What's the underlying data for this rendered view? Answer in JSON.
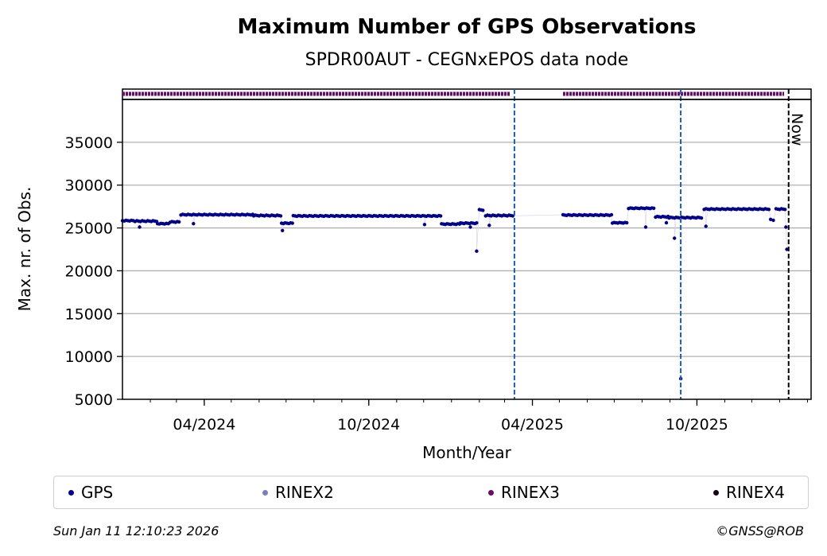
{
  "chart_data": {
    "type": "scatter",
    "title": "Maximum Number of GPS Observations",
    "subtitle": "SPDR00AUT - CEGNxEPOS data node",
    "xlabel": "Month/Year",
    "ylabel": "Max. nr. of Obs.",
    "xlim": [
      "2024-01-01",
      "2026-02-05"
    ],
    "ylim": [
      5000,
      40000
    ],
    "yticks": [
      5000,
      10000,
      15000,
      20000,
      25000,
      30000,
      35000
    ],
    "xticks": [
      {
        "date": "2024-04-01",
        "label": "04/2024"
      },
      {
        "date": "2024-10-01",
        "label": "10/2024"
      },
      {
        "date": "2025-04-01",
        "label": "04/2025"
      },
      {
        "date": "2025-10-01",
        "label": "10/2025"
      }
    ],
    "grid": "horizontal",
    "now_label": "Now",
    "now_date": "2026-01-11",
    "event_lines": [
      "2025-03-12",
      "2025-09-13"
    ],
    "series": [
      {
        "name": "GPS",
        "color": "#00008b",
        "segments": [
          {
            "start": "2024-01-01",
            "end": "2024-01-14",
            "value": 25850
          },
          {
            "start": "2024-01-15",
            "end": "2024-02-08",
            "value": 25800
          },
          {
            "start": "2024-02-09",
            "end": "2024-02-22",
            "value": 25500
          },
          {
            "start": "2024-02-23",
            "end": "2024-03-05",
            "value": 25700
          },
          {
            "start": "2024-03-06",
            "end": "2024-05-25",
            "value": 26550
          },
          {
            "start": "2024-05-26",
            "end": "2024-06-25",
            "value": 26450
          },
          {
            "start": "2024-06-26",
            "end": "2024-07-08",
            "value": 25550
          },
          {
            "start": "2024-07-09",
            "end": "2024-12-20",
            "value": 26400
          },
          {
            "start": "2024-12-21",
            "end": "2025-01-10",
            "value": 25450
          },
          {
            "start": "2025-01-11",
            "end": "2025-01-30",
            "value": 25550
          },
          {
            "start": "2025-02-01",
            "end": "2025-02-06",
            "value": 27100
          },
          {
            "start": "2025-02-08",
            "end": "2025-03-10",
            "value": 26450
          },
          {
            "start": "2025-05-05",
            "end": "2025-06-28",
            "value": 26500
          },
          {
            "start": "2025-06-29",
            "end": "2025-07-16",
            "value": 25600
          },
          {
            "start": "2025-07-17",
            "end": "2025-08-15",
            "value": 27300
          },
          {
            "start": "2025-08-16",
            "end": "2025-08-30",
            "value": 26300
          },
          {
            "start": "2025-08-31",
            "end": "2025-10-06",
            "value": 26200
          },
          {
            "start": "2025-10-09",
            "end": "2025-12-20",
            "value": 27200
          },
          {
            "start": "2025-12-28",
            "end": "2026-01-08",
            "value": 27200
          }
        ],
        "points": [
          {
            "x": "2024-01-20",
            "y": 25100
          },
          {
            "x": "2024-03-20",
            "y": 25500
          },
          {
            "x": "2024-06-27",
            "y": 24700
          },
          {
            "x": "2024-12-02",
            "y": 25400
          },
          {
            "x": "2025-01-22",
            "y": 25100
          },
          {
            "x": "2025-01-29",
            "y": 22300
          },
          {
            "x": "2025-02-12",
            "y": 25300
          },
          {
            "x": "2025-08-05",
            "y": 25100
          },
          {
            "x": "2025-08-28",
            "y": 25600
          },
          {
            "x": "2025-09-06",
            "y": 23800
          },
          {
            "x": "2025-09-13",
            "y": 7400
          },
          {
            "x": "2025-10-11",
            "y": 25200
          },
          {
            "x": "2025-12-22",
            "y": 26000
          },
          {
            "x": "2025-12-25",
            "y": 25900
          },
          {
            "x": "2026-01-08",
            "y": 25100
          },
          {
            "x": "2026-01-09",
            "y": 22500
          }
        ]
      },
      {
        "name": "RINEX2",
        "color": "#7b7fbf",
        "segments": [],
        "points": []
      },
      {
        "name": "RINEX3",
        "color": "#6a0a6a",
        "availability": [
          {
            "start": "2024-01-01",
            "end": "2025-03-07"
          },
          {
            "start": "2025-05-05",
            "end": "2026-01-06"
          }
        ]
      },
      {
        "name": "RINEX4",
        "color": "#1a0018",
        "segments": [],
        "points": []
      }
    ]
  },
  "footer": {
    "timestamp": "Sun Jan 11 12:10:23 2026",
    "copyright": "©GNSS@ROB"
  }
}
